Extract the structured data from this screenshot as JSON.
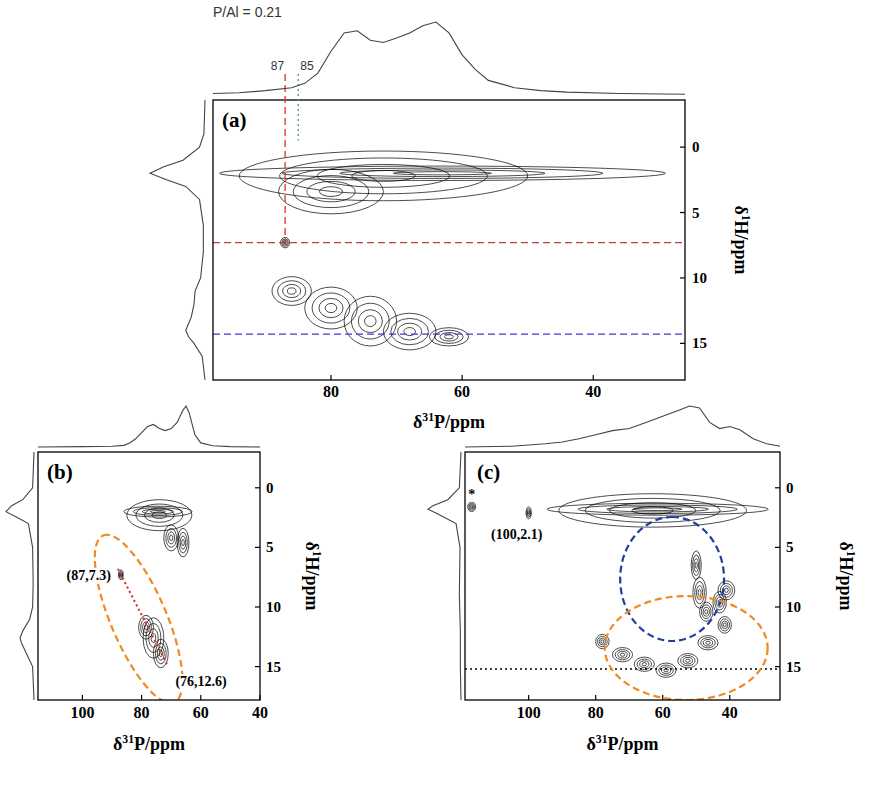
{
  "chart_data": [
    {
      "type": "contour",
      "title": "(a)",
      "subtitle": "P/Al = 0.21",
      "x_label": "δ31P/ppm",
      "y_label": "δ1H/ppm",
      "color": "#000000",
      "xlim": [
        98,
        26
      ],
      "xticks": [
        80,
        60,
        40
      ],
      "ylim": [
        -3.6,
        17.8
      ],
      "yticks": [
        0,
        5,
        10,
        15
      ],
      "peaks": [
        {
          "x": 63,
          "y": 2,
          "x_width": 34,
          "y_width": 0.55
        },
        {
          "x": 72,
          "y": 2.2,
          "x_width": 22,
          "y_width": 1.9
        },
        {
          "x": 80,
          "y": 3.4,
          "x_width": 8,
          "y_width": 1.7
        },
        {
          "x": 87,
          "y": 7.3,
          "x_width": 0.7,
          "y_width": 0.4
        },
        {
          "x": 86,
          "y": 11,
          "x_width": 3,
          "y_width": 1.1
        },
        {
          "x": 80,
          "y": 12.3,
          "x_width": 4,
          "y_width": 1.6
        },
        {
          "x": 74,
          "y": 13.3,
          "x_width": 4,
          "y_width": 1.9
        },
        {
          "x": 68,
          "y": 14.1,
          "x_width": 4,
          "y_width": 1.4
        },
        {
          "x": 62,
          "y": 14.5,
          "x_width": 3,
          "y_width": 0.7
        }
      ],
      "x_projection": {
        "x": [
          98,
          94,
          90,
          86,
          84,
          82,
          80,
          78,
          76,
          74,
          72,
          70,
          68,
          66,
          64,
          62,
          60,
          58,
          56,
          52,
          48,
          44,
          36,
          26
        ],
        "values": [
          0.02,
          0.03,
          0.06,
          0.1,
          0.16,
          0.3,
          0.6,
          0.85,
          0.88,
          0.75,
          0.72,
          0.78,
          0.85,
          0.95,
          1.0,
          0.85,
          0.55,
          0.35,
          0.2,
          0.1,
          0.06,
          0.04,
          0.02,
          0.01
        ]
      },
      "y_projection": {
        "y": [
          -3.6,
          -1,
          0,
          1,
          1.5,
          2,
          2.5,
          3,
          4,
          6,
          8,
          10,
          11,
          12,
          13,
          14,
          14.5,
          15,
          16,
          17.8
        ],
        "values": [
          0,
          0.02,
          0.1,
          0.4,
          0.75,
          1.0,
          0.7,
          0.35,
          0.1,
          0.03,
          0.03,
          0.08,
          0.18,
          0.2,
          0.25,
          0.35,
          0.3,
          0.2,
          0.05,
          0
        ]
      },
      "vlines": [
        {
          "x": 87,
          "y": 7.3,
          "label": "87",
          "color": "#e03030",
          "line_style": "dashed"
        },
        {
          "x": 85,
          "y": -0.5,
          "label": "85",
          "color": "#3aa655",
          "line_style": "dotted"
        }
      ],
      "hlines": [
        {
          "y": 7.3,
          "color": "#c83c3c",
          "line_style": "dashed"
        },
        {
          "y": 14.3,
          "color": "#3b3bd6",
          "line_style": "dashed"
        }
      ]
    },
    {
      "type": "contour",
      "title": "(b)",
      "x_label": "δ31P/ppm",
      "y_label": "δ1H/ppm",
      "color": "#000000",
      "xlim": [
        115,
        40
      ],
      "xticks": [
        100,
        80,
        60,
        40
      ],
      "ylim": [
        -3,
        17.8
      ],
      "yticks": [
        0,
        5,
        10,
        15
      ],
      "peaks": [
        {
          "x": 74.5,
          "y": 2,
          "x_width": 11.5,
          "y_width": 0.45
        },
        {
          "x": 74,
          "y": 2.3,
          "x_width": 11,
          "y_width": 1.3
        },
        {
          "x": 70,
          "y": 4.2,
          "x_width": 2.5,
          "y_width": 1.1
        },
        {
          "x": 66,
          "y": 4.6,
          "x_width": 2,
          "y_width": 1.2
        },
        {
          "x": 87,
          "y": 7.3,
          "x_width": 0.8,
          "y_width": 0.4
        },
        {
          "x": 78.5,
          "y": 11.7,
          "x_width": 2.5,
          "y_width": 1.0
        },
        {
          "x": 76,
          "y": 12.6,
          "x_width": 3.5,
          "y_width": 1.7
        },
        {
          "x": 73.5,
          "y": 13.9,
          "x_width": 2.5,
          "y_width": 1.2
        }
      ],
      "x_projection": {
        "x": [
          115,
          100,
          90,
          86,
          84,
          82,
          80,
          78,
          76,
          74,
          72,
          70,
          68,
          66,
          65,
          64,
          62,
          60,
          56,
          50,
          40
        ],
        "values": [
          0,
          0.01,
          0.02,
          0.04,
          0.1,
          0.2,
          0.35,
          0.5,
          0.55,
          0.45,
          0.4,
          0.45,
          0.6,
          0.9,
          1.0,
          0.85,
          0.3,
          0.1,
          0.03,
          0.01,
          0
        ]
      },
      "y_projection": {
        "y": [
          -3,
          0,
          1,
          1.5,
          2,
          2.5,
          3,
          5,
          8,
          10,
          11,
          12,
          12.6,
          13,
          14,
          15,
          17.8
        ],
        "values": [
          0,
          0.05,
          0.4,
          0.8,
          1.0,
          0.6,
          0.2,
          0.05,
          0.03,
          0.05,
          0.15,
          0.4,
          0.5,
          0.45,
          0.25,
          0.05,
          0
        ]
      },
      "lines": [
        {
          "from": [
            88,
            6.8
          ],
          "to": [
            71,
            15
          ],
          "color": "#d62728",
          "line_style": "dotted"
        }
      ],
      "regions": [
        {
          "center": [
            81,
            11
          ],
          "vertex": [
            93,
            4
          ],
          "co_vertex": [
            72.3,
            10.1
          ],
          "color": "#f08a24",
          "line_style": "dashed"
        }
      ],
      "annotations": [
        {
          "text": "(87,7.3)",
          "x": 87,
          "y": 7.3
        },
        {
          "text": "(76,12.6)",
          "x": 76,
          "y": 12.6
        }
      ]
    },
    {
      "type": "contour",
      "title": "(c)",
      "x_label": "δ31P/ppm",
      "y_label": "δ1H/ppm",
      "color": "#000000",
      "xlim": [
        119,
        25
      ],
      "xticks": [
        100,
        80,
        60,
        40
      ],
      "ylim": [
        -3,
        17.8
      ],
      "yticks": [
        0,
        5,
        10,
        15
      ],
      "peaks": [
        {
          "x": 117,
          "y": 1.6,
          "x_width": 1.2,
          "y_width": 0.4
        },
        {
          "x": 100,
          "y": 2.1,
          "x_width": 0.8,
          "y_width": 0.5
        },
        {
          "x": 61.5,
          "y": 1.8,
          "x_width": 33,
          "y_width": 0.5
        },
        {
          "x": 63,
          "y": 1.9,
          "x_width": 28,
          "y_width": 1.4
        },
        {
          "x": 50,
          "y": 6.5,
          "x_width": 1.5,
          "y_width": 1.2
        },
        {
          "x": 49,
          "y": 8.8,
          "x_width": 2,
          "y_width": 1.3
        },
        {
          "x": 47,
          "y": 10.4,
          "x_width": 2,
          "y_width": 0.8
        },
        {
          "x": 41,
          "y": 8.6,
          "x_width": 2.5,
          "y_width": 0.8
        },
        {
          "x": 43,
          "y": 9.6,
          "x_width": 2,
          "y_width": 0.9
        },
        {
          "x": 78,
          "y": 12.9,
          "x_width": 2,
          "y_width": 0.6
        },
        {
          "x": 72,
          "y": 14,
          "x_width": 3,
          "y_width": 0.6
        },
        {
          "x": 65.5,
          "y": 14.8,
          "x_width": 3,
          "y_width": 0.6
        },
        {
          "x": 59,
          "y": 15.3,
          "x_width": 3,
          "y_width": 0.6
        },
        {
          "x": 52.5,
          "y": 14.5,
          "x_width": 3,
          "y_width": 0.6
        },
        {
          "x": 46.5,
          "y": 13,
          "x_width": 3,
          "y_width": 0.6
        },
        {
          "x": 41.5,
          "y": 11.5,
          "x_width": 2,
          "y_width": 0.7
        }
      ],
      "x_projection": {
        "x": [
          119,
          105,
          100,
          95,
          90,
          85,
          80,
          75,
          70,
          65,
          60,
          55,
          52,
          49,
          46,
          43,
          40,
          37,
          33,
          29,
          25
        ],
        "values": [
          0,
          0.02,
          0.05,
          0.08,
          0.12,
          0.2,
          0.3,
          0.4,
          0.45,
          0.6,
          0.75,
          0.9,
          1.0,
          0.95,
          0.6,
          0.45,
          0.5,
          0.42,
          0.2,
          0.08,
          0.02
        ]
      },
      "y_projection": {
        "y": [
          -3,
          0,
          1,
          1.5,
          1.8,
          2.2,
          3,
          5,
          9,
          12,
          15,
          17.8
        ],
        "values": [
          0,
          0.05,
          0.4,
          0.85,
          1.0,
          0.7,
          0.15,
          0.03,
          0.05,
          0.02,
          0.02,
          0
        ]
      },
      "hlines": [
        {
          "y": 15.2,
          "color": "#000000",
          "line_style": "dotted"
        }
      ],
      "regions": [
        {
          "center": [
            57.2,
            7.65
          ],
          "vertex": [
            57.2,
            2.45
          ],
          "co_vertex": [
            41.7,
            7.65
          ],
          "color": "#1f3f9f",
          "line_style": "dashed"
        },
        {
          "center": [
            53,
            13.44
          ],
          "vertex": [
            28.7,
            13.44
          ],
          "co_vertex": [
            53,
            9.08
          ],
          "color": "#f08a24",
          "line_style": "dashed"
        }
      ],
      "annotations": [
        {
          "text": "*",
          "x": 117,
          "y": 1.6
        },
        {
          "text": "(100,2.1)",
          "x": 100,
          "y": 2.1
        }
      ]
    }
  ]
}
